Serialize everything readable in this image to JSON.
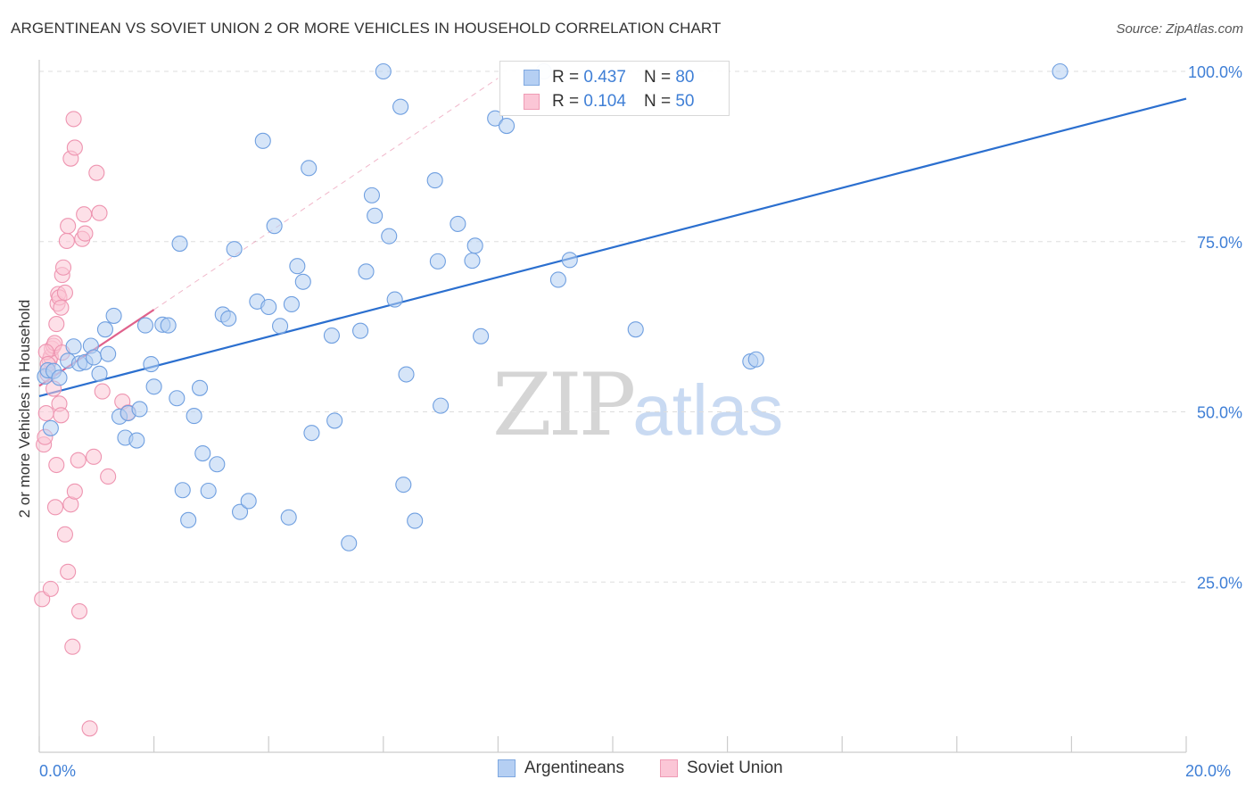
{
  "title": "ARGENTINEAN VS SOVIET UNION 2 OR MORE VEHICLES IN HOUSEHOLD CORRELATION CHART",
  "source": "Source: ZipAtlas.com",
  "watermark": {
    "part1": "ZIP",
    "part2": "atlas"
  },
  "colors": {
    "blue_fill": "#b5cff3",
    "blue_stroke": "#6f9fe0",
    "blue_line": "#2b6fcf",
    "pink_fill": "#fbc6d6",
    "pink_stroke": "#ee94b0",
    "pink_line": "#e0628c",
    "grid": "#dddddd",
    "tick_label": "#3f7fd6"
  },
  "stats": {
    "row1": {
      "r_label": "R =",
      "r_value": "0.437",
      "n_label": "N =",
      "n_value": "80"
    },
    "row2": {
      "r_label": "R =",
      "r_value": "0.104",
      "n_label": "N =",
      "n_value": "50"
    }
  },
  "legend": {
    "items": [
      {
        "label": "Argentineans"
      },
      {
        "label": "Soviet Union"
      }
    ]
  },
  "chart_data": {
    "type": "scatter",
    "title": "ARGENTINEAN VS SOVIET UNION 2 OR MORE VEHICLES IN HOUSEHOLD CORRELATION CHART",
    "xlabel": "",
    "ylabel": "2 or more Vehicles in Household",
    "xlim": [
      0,
      20
    ],
    "ylim": [
      0,
      102
    ],
    "x_tick_labels": [
      {
        "value": 0,
        "label": "0.0%"
      },
      {
        "value": 20,
        "label": "20.0%"
      }
    ],
    "x_minor_ticks": [
      0,
      2,
      4,
      6,
      8,
      10,
      12,
      14,
      16,
      18,
      20
    ],
    "y_ticks": [
      {
        "value": 25,
        "label": "25.0%"
      },
      {
        "value": 50,
        "label": "50.0%"
      },
      {
        "value": 75,
        "label": "75.0%"
      },
      {
        "value": 100,
        "label": "100.0%"
      }
    ],
    "grid": true,
    "legend_position": "bottom-center",
    "series": [
      {
        "name": "Argentineans",
        "color": "blue",
        "r": 0.437,
        "n": 80,
        "trend": {
          "x0": 0,
          "y0": 52.3,
          "x1": 20,
          "y1": 96.0
        },
        "points": [
          [
            0.1,
            55.2
          ],
          [
            0.15,
            56.1
          ],
          [
            0.2,
            47.6
          ],
          [
            0.25,
            56.0
          ],
          [
            0.35,
            55.0
          ],
          [
            0.5,
            57.5
          ],
          [
            0.6,
            59.6
          ],
          [
            0.7,
            57.1
          ],
          [
            0.8,
            57.3
          ],
          [
            0.9,
            59.7
          ],
          [
            0.95,
            58.0
          ],
          [
            1.05,
            55.6
          ],
          [
            1.15,
            62.1
          ],
          [
            1.2,
            58.5
          ],
          [
            1.3,
            64.1
          ],
          [
            1.4,
            49.3
          ],
          [
            1.5,
            46.2
          ],
          [
            1.55,
            49.8
          ],
          [
            1.7,
            45.8
          ],
          [
            1.75,
            50.4
          ],
          [
            1.85,
            62.7
          ],
          [
            1.95,
            57.0
          ],
          [
            2.0,
            53.7
          ],
          [
            2.15,
            62.8
          ],
          [
            2.25,
            62.7
          ],
          [
            2.4,
            52.0
          ],
          [
            2.45,
            74.7
          ],
          [
            2.5,
            38.5
          ],
          [
            2.6,
            34.1
          ],
          [
            2.7,
            49.4
          ],
          [
            2.8,
            53.5
          ],
          [
            2.85,
            43.9
          ],
          [
            2.95,
            38.4
          ],
          [
            3.1,
            42.3
          ],
          [
            3.2,
            64.3
          ],
          [
            3.3,
            63.7
          ],
          [
            3.4,
            73.9
          ],
          [
            3.5,
            35.3
          ],
          [
            3.65,
            36.9
          ],
          [
            3.8,
            66.2
          ],
          [
            3.9,
            89.8
          ],
          [
            4.0,
            65.4
          ],
          [
            4.1,
            77.3
          ],
          [
            4.2,
            62.6
          ],
          [
            4.35,
            34.5
          ],
          [
            4.4,
            65.8
          ],
          [
            4.5,
            71.4
          ],
          [
            4.6,
            69.1
          ],
          [
            4.7,
            85.8
          ],
          [
            4.75,
            46.9
          ],
          [
            5.1,
            61.2
          ],
          [
            5.15,
            48.7
          ],
          [
            5.4,
            30.7
          ],
          [
            5.6,
            61.9
          ],
          [
            5.7,
            70.6
          ],
          [
            5.8,
            81.8
          ],
          [
            5.85,
            78.8
          ],
          [
            6.0,
            100.0
          ],
          [
            6.1,
            75.8
          ],
          [
            6.2,
            66.5
          ],
          [
            6.3,
            94.8
          ],
          [
            6.35,
            39.3
          ],
          [
            6.4,
            55.5
          ],
          [
            6.55,
            34.0
          ],
          [
            6.9,
            84.0
          ],
          [
            6.95,
            72.1
          ],
          [
            7.0,
            50.9
          ],
          [
            7.3,
            77.6
          ],
          [
            7.55,
            72.2
          ],
          [
            7.6,
            74.4
          ],
          [
            7.7,
            61.1
          ],
          [
            7.95,
            93.1
          ],
          [
            8.15,
            92.0
          ],
          [
            8.8,
            100.0
          ],
          [
            9.05,
            69.4
          ],
          [
            9.25,
            72.3
          ],
          [
            10.4,
            62.1
          ],
          [
            12.4,
            57.4
          ],
          [
            12.5,
            57.7
          ],
          [
            17.8,
            100.0
          ]
        ]
      },
      {
        "name": "Soviet Union",
        "color": "pink",
        "r": 0.104,
        "n": 50,
        "trend": {
          "x0": 0,
          "y0": 53.8,
          "x1": 2.0,
          "y1": 65.0
        },
        "trend_extension": {
          "x0": 2.0,
          "y0": 65.0,
          "x1": 8.0,
          "y1": 99.0
        },
        "points": [
          [
            0.05,
            22.5
          ],
          [
            0.08,
            45.2
          ],
          [
            0.1,
            46.3
          ],
          [
            0.12,
            49.8
          ],
          [
            0.15,
            55.5
          ],
          [
            0.18,
            57.6
          ],
          [
            0.2,
            58.1
          ],
          [
            0.22,
            59.3
          ],
          [
            0.25,
            59.7
          ],
          [
            0.27,
            60.1
          ],
          [
            0.3,
            62.9
          ],
          [
            0.32,
            65.9
          ],
          [
            0.33,
            67.3
          ],
          [
            0.35,
            66.8
          ],
          [
            0.38,
            65.3
          ],
          [
            0.4,
            70.1
          ],
          [
            0.42,
            71.2
          ],
          [
            0.45,
            67.5
          ],
          [
            0.48,
            75.1
          ],
          [
            0.5,
            77.3
          ],
          [
            0.55,
            87.2
          ],
          [
            0.6,
            93.0
          ],
          [
            0.62,
            88.8
          ],
          [
            0.68,
            42.9
          ],
          [
            0.7,
            20.7
          ],
          [
            0.75,
            75.4
          ],
          [
            0.78,
            79.0
          ],
          [
            0.8,
            76.2
          ],
          [
            0.88,
            3.5
          ],
          [
            0.95,
            43.4
          ],
          [
            1.0,
            85.1
          ],
          [
            1.05,
            79.2
          ],
          [
            1.1,
            53.0
          ],
          [
            1.2,
            40.5
          ],
          [
            1.45,
            51.5
          ],
          [
            1.55,
            49.9
          ],
          [
            0.12,
            58.8
          ],
          [
            0.2,
            24.0
          ],
          [
            0.28,
            36.0
          ],
          [
            0.3,
            42.2
          ],
          [
            0.35,
            51.2
          ],
          [
            0.38,
            49.5
          ],
          [
            0.45,
            32.0
          ],
          [
            0.5,
            26.5
          ],
          [
            0.55,
            36.4
          ],
          [
            0.58,
            15.5
          ],
          [
            0.62,
            38.3
          ],
          [
            0.25,
            53.4
          ],
          [
            0.15,
            57.0
          ],
          [
            0.4,
            58.7
          ]
        ]
      }
    ]
  }
}
